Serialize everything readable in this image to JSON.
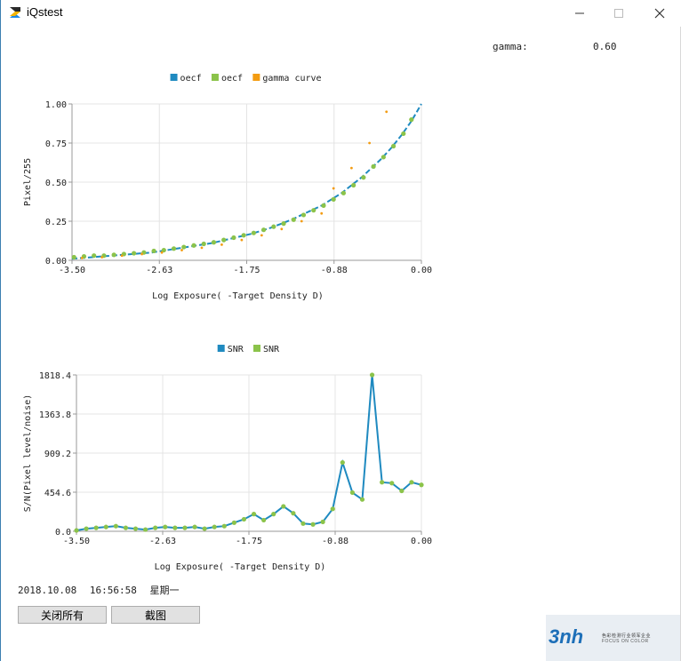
{
  "window": {
    "title": "iQstest",
    "controls": [
      "minimize-icon",
      "maximize-icon",
      "close-icon"
    ]
  },
  "gamma": {
    "label": "gamma:",
    "value": "0.60"
  },
  "chart_data": [
    {
      "type": "line",
      "title": "",
      "xlabel": "Log Exposure( -Target Density D)",
      "ylabel": "Pixel/255",
      "xlim": [
        -3.5,
        0.0
      ],
      "ylim": [
        0.0,
        1.0
      ],
      "x_ticks": [
        "-3.50",
        "-2.63",
        "-1.75",
        "-0.88",
        "0.00"
      ],
      "y_ticks": [
        "0.00",
        "0.25",
        "0.50",
        "0.75",
        "1.00"
      ],
      "grid": true,
      "legend": "top-center",
      "series": [
        {
          "name": "oecf",
          "style": "dashed-line",
          "color": "#1f8ac0",
          "x": [
            -3.5,
            -3.4,
            -3.3,
            -3.2,
            -3.1,
            -3.0,
            -2.9,
            -2.8,
            -2.7,
            -2.6,
            -2.5,
            -2.4,
            -2.3,
            -2.2,
            -2.1,
            -2.0,
            -1.9,
            -1.8,
            -1.7,
            -1.6,
            -1.5,
            -1.4,
            -1.3,
            -1.2,
            -1.1,
            -1.0,
            -0.9,
            -0.8,
            -0.7,
            -0.6,
            -0.5,
            -0.4,
            -0.3,
            -0.2,
            -0.1,
            0.0
          ],
          "y": [
            0.01,
            0.015,
            0.02,
            0.025,
            0.03,
            0.035,
            0.04,
            0.045,
            0.05,
            0.06,
            0.07,
            0.08,
            0.09,
            0.1,
            0.11,
            0.125,
            0.14,
            0.155,
            0.17,
            0.19,
            0.21,
            0.235,
            0.26,
            0.29,
            0.32,
            0.35,
            0.39,
            0.43,
            0.48,
            0.53,
            0.59,
            0.65,
            0.72,
            0.8,
            0.89,
            1.0
          ]
        },
        {
          "name": "oecf",
          "style": "markers",
          "color": "#8bc34a",
          "x": [
            -3.48,
            -3.38,
            -3.28,
            -3.18,
            -3.08,
            -2.98,
            -2.88,
            -2.78,
            -2.68,
            -2.58,
            -2.48,
            -2.38,
            -2.28,
            -2.18,
            -2.08,
            -1.98,
            -1.88,
            -1.78,
            -1.68,
            -1.58,
            -1.48,
            -1.38,
            -1.28,
            -1.18,
            -1.08,
            -0.98,
            -0.88,
            -0.78,
            -0.68,
            -0.58,
            -0.48,
            -0.38,
            -0.28,
            -0.18,
            -0.1
          ],
          "y": [
            0.02,
            0.025,
            0.03,
            0.03,
            0.035,
            0.04,
            0.045,
            0.05,
            0.06,
            0.065,
            0.075,
            0.085,
            0.095,
            0.105,
            0.115,
            0.13,
            0.145,
            0.16,
            0.175,
            0.195,
            0.215,
            0.235,
            0.26,
            0.29,
            0.32,
            0.35,
            0.39,
            0.43,
            0.48,
            0.53,
            0.6,
            0.66,
            0.73,
            0.81,
            0.9
          ]
        },
        {
          "name": "gamma curve",
          "style": "markers",
          "color": "#f39c12",
          "x": [
            -3.4,
            -3.2,
            -3.0,
            -2.8,
            -2.6,
            -2.4,
            -2.2,
            -2.0,
            -1.8,
            -1.6,
            -1.4,
            -1.2,
            -1.0,
            -0.88,
            -0.7,
            -0.52,
            -0.35
          ],
          "y": [
            0.015,
            0.02,
            0.03,
            0.04,
            0.05,
            0.065,
            0.08,
            0.1,
            0.13,
            0.16,
            0.2,
            0.25,
            0.3,
            0.46,
            0.59,
            0.75,
            0.95
          ]
        }
      ]
    },
    {
      "type": "line",
      "title": "",
      "xlabel": "Log Exposure( -Target Density D)",
      "ylabel": "S/N(Pixel level/noise)",
      "xlim": [
        -3.5,
        0.0
      ],
      "ylim": [
        0.0,
        1818.4
      ],
      "x_ticks": [
        "-3.50",
        "-2.63",
        "-1.75",
        "-0.88",
        "0.00"
      ],
      "y_ticks": [
        "0.0",
        "454.6",
        "909.2",
        "1363.8",
        "1818.4"
      ],
      "grid": true,
      "legend": "top-center",
      "series": [
        {
          "name": "SNR",
          "style": "line",
          "color": "#1f8ac0",
          "x": [
            -3.5,
            -3.4,
            -3.3,
            -3.2,
            -3.1,
            -3.0,
            -2.9,
            -2.8,
            -2.7,
            -2.6,
            -2.5,
            -2.4,
            -2.3,
            -2.2,
            -2.1,
            -2.0,
            -1.9,
            -1.8,
            -1.7,
            -1.6,
            -1.5,
            -1.4,
            -1.3,
            -1.2,
            -1.1,
            -1.0,
            -0.9,
            -0.8,
            -0.7,
            -0.6,
            -0.5,
            -0.4,
            -0.3,
            -0.2,
            -0.1,
            0.0
          ],
          "y": [
            10,
            30,
            40,
            50,
            60,
            40,
            30,
            20,
            40,
            50,
            40,
            40,
            50,
            30,
            50,
            60,
            100,
            140,
            200,
            130,
            200,
            290,
            210,
            90,
            80,
            110,
            260,
            800,
            450,
            370,
            1820,
            570,
            560,
            470,
            570,
            540
          ]
        },
        {
          "name": "SNR",
          "style": "markers",
          "color": "#8bc34a",
          "x": [
            -3.5,
            -3.4,
            -3.3,
            -3.2,
            -3.1,
            -3.0,
            -2.9,
            -2.8,
            -2.7,
            -2.6,
            -2.5,
            -2.4,
            -2.3,
            -2.2,
            -2.1,
            -2.0,
            -1.9,
            -1.8,
            -1.7,
            -1.6,
            -1.5,
            -1.4,
            -1.3,
            -1.2,
            -1.1,
            -1.0,
            -0.9,
            -0.8,
            -0.7,
            -0.6,
            -0.5,
            -0.4,
            -0.3,
            -0.2,
            -0.1,
            0.0
          ],
          "y": [
            10,
            30,
            40,
            50,
            60,
            40,
            30,
            20,
            40,
            50,
            40,
            40,
            50,
            30,
            50,
            60,
            100,
            140,
            200,
            130,
            200,
            290,
            210,
            90,
            80,
            110,
            260,
            800,
            450,
            370,
            1820,
            570,
            560,
            470,
            570,
            540
          ]
        }
      ]
    }
  ],
  "datetime": {
    "date": "2018.10.08",
    "time": "16:56:58",
    "weekday": "星期一"
  },
  "buttons": {
    "close_all": "关闭所有",
    "screenshot": "截图"
  },
  "logo": {
    "brand": "3nh",
    "tagline_cn": "色彩检测行业领军企业",
    "tagline_en": "FOCUS ON COLOR"
  }
}
